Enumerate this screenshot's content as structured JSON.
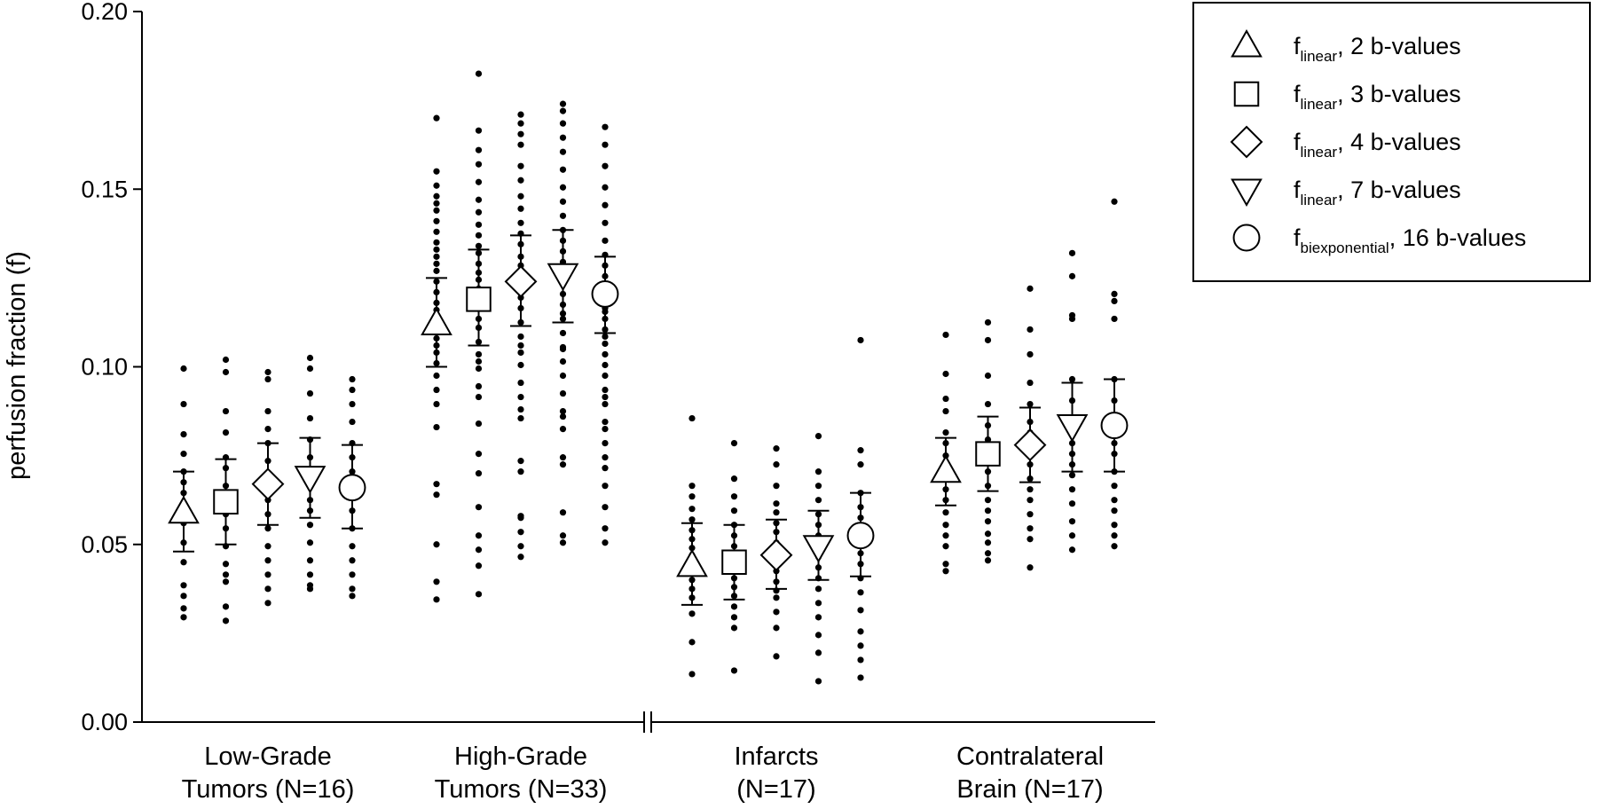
{
  "chart_data": {
    "type": "scatter",
    "ylabel": "perfusion fraction (f)",
    "ylim": [
      0,
      0.2
    ],
    "yticks": [
      "0.00",
      "0.05",
      "0.10",
      "0.15",
      "0.20"
    ],
    "axis_break_between": [
      "High-Grade Tumors (N=33)",
      "Infarcts (N=17)"
    ],
    "categories": [
      {
        "line1": "Low-Grade",
        "line2": "Tumors (N=16)"
      },
      {
        "line1": "High-Grade",
        "line2": "Tumors (N=33)"
      },
      {
        "line1": "Infarcts",
        "line2": "(N=17)"
      },
      {
        "line1": "Contralateral",
        "line2": "Brain (N=17)"
      }
    ],
    "legend": {
      "placement": "top-right",
      "entries": [
        {
          "marker": "triangle-up",
          "main": "f",
          "sub": "linear",
          "rest": ", 2 b-values"
        },
        {
          "marker": "square",
          "main": "f",
          "sub": "linear",
          "rest": ", 3 b-values"
        },
        {
          "marker": "diamond",
          "main": "f",
          "sub": "linear",
          "rest": ", 4 b-values"
        },
        {
          "marker": "triangle-down",
          "main": "f",
          "sub": "linear",
          "rest": ", 7 b-values"
        },
        {
          "marker": "circle",
          "main": "f",
          "sub": "biexponential",
          "rest": ", 16 b-values"
        }
      ]
    },
    "series": [
      {
        "name": "f_linear, 2 b-values",
        "marker": "triangle-up",
        "mean": [
          0.059,
          0.112,
          0.044,
          0.0705
        ],
        "lower": [
          0.048,
          0.1,
          0.033,
          0.061
        ],
        "upper": [
          0.0705,
          0.125,
          0.056,
          0.08
        ],
        "points": [
          [
            0.0995,
            0.0895,
            0.081,
            0.0755,
            0.0705,
            0.0675,
            0.0645,
            0.0615,
            0.059,
            0.056,
            0.0505,
            0.045,
            0.0385,
            0.0355,
            0.032,
            0.0295
          ],
          [
            0.17,
            0.155,
            0.151,
            0.148,
            0.146,
            0.144,
            0.141,
            0.138,
            0.135,
            0.133,
            0.131,
            0.129,
            0.127,
            0.124,
            0.121,
            0.118,
            0.116,
            0.114,
            0.112,
            0.11,
            0.108,
            0.106,
            0.104,
            0.101,
            0.0975,
            0.0935,
            0.0895,
            0.083,
            0.067,
            0.064,
            0.05,
            0.0395,
            0.0345
          ],
          [
            0.0855,
            0.0665,
            0.0635,
            0.06,
            0.057,
            0.054,
            0.0515,
            0.049,
            0.047,
            0.045,
            0.0425,
            0.04,
            0.0375,
            0.035,
            0.0305,
            0.0225,
            0.0135
          ],
          [
            0.109,
            0.098,
            0.091,
            0.0875,
            0.0815,
            0.0785,
            0.075,
            0.072,
            0.069,
            0.0655,
            0.0625,
            0.059,
            0.0555,
            0.0525,
            0.0495,
            0.0445,
            0.0425
          ]
        ]
      },
      {
        "name": "f_linear, 3 b-values",
        "marker": "square",
        "mean": [
          0.062,
          0.119,
          0.045,
          0.0755
        ],
        "lower": [
          0.05,
          0.106,
          0.0345,
          0.065
        ],
        "upper": [
          0.074,
          0.133,
          0.0555,
          0.086
        ],
        "points": [
          [
            0.102,
            0.0985,
            0.0875,
            0.0815,
            0.0745,
            0.0715,
            0.0665,
            0.0635,
            0.0585,
            0.0545,
            0.0495,
            0.0445,
            0.0415,
            0.0395,
            0.0325,
            0.0285
          ],
          [
            0.1825,
            0.1665,
            0.161,
            0.157,
            0.152,
            0.147,
            0.1435,
            0.14,
            0.137,
            0.134,
            0.132,
            0.129,
            0.1265,
            0.1245,
            0.122,
            0.1185,
            0.1165,
            0.1135,
            0.111,
            0.107,
            0.1035,
            0.1015,
            0.0995,
            0.0945,
            0.0915,
            0.084,
            0.0755,
            0.07,
            0.0605,
            0.0525,
            0.0485,
            0.044,
            0.036
          ],
          [
            0.0785,
            0.0685,
            0.0635,
            0.0595,
            0.0555,
            0.0525,
            0.0495,
            0.0465,
            0.045,
            0.043,
            0.0405,
            0.038,
            0.0355,
            0.0325,
            0.0295,
            0.0265,
            0.0145
          ],
          [
            0.1125,
            0.1075,
            0.0975,
            0.0895,
            0.0835,
            0.0795,
            0.0765,
            0.0735,
            0.0705,
            0.0665,
            0.0625,
            0.0595,
            0.0565,
            0.053,
            0.0505,
            0.0475,
            0.0455
          ]
        ]
      },
      {
        "name": "f_linear, 4 b-values",
        "marker": "diamond",
        "mean": [
          0.067,
          0.124,
          0.047,
          0.078
        ],
        "lower": [
          0.0555,
          0.1115,
          0.0375,
          0.0675
        ],
        "upper": [
          0.0785,
          0.137,
          0.057,
          0.0885
        ],
        "points": [
          [
            0.0985,
            0.0965,
            0.0875,
            0.0825,
            0.0785,
            0.0735,
            0.0695,
            0.0655,
            0.0625,
            0.0585,
            0.0545,
            0.0495,
            0.0455,
            0.0415,
            0.0375,
            0.0335
          ],
          [
            0.171,
            0.1685,
            0.1655,
            0.1625,
            0.1565,
            0.1525,
            0.148,
            0.1445,
            0.1405,
            0.1375,
            0.1345,
            0.131,
            0.1285,
            0.1255,
            0.1225,
            0.1195,
            0.1165,
            0.1125,
            0.1085,
            0.106,
            0.104,
            0.1005,
            0.0955,
            0.0915,
            0.0855,
            0.0735,
            0.0705,
            0.0575,
            0.0535,
            0.0495,
            0.0465,
            0.058,
            0.088
          ],
          [
            0.077,
            0.0725,
            0.0665,
            0.0615,
            0.059,
            0.056,
            0.0535,
            0.0505,
            0.048,
            0.045,
            0.0425,
            0.0395,
            0.037,
            0.035,
            0.031,
            0.0265,
            0.0185
          ],
          [
            0.122,
            0.1105,
            0.1035,
            0.0955,
            0.0895,
            0.0845,
            0.0815,
            0.0785,
            0.0755,
            0.0725,
            0.0685,
            0.0655,
            0.0625,
            0.0585,
            0.0545,
            0.0515,
            0.0435
          ]
        ]
      },
      {
        "name": "f_linear, 7 b-values",
        "marker": "triangle-down",
        "mean": [
          0.069,
          0.126,
          0.0495,
          0.0835
        ],
        "lower": [
          0.0575,
          0.1125,
          0.04,
          0.0705
        ],
        "upper": [
          0.08,
          0.1385,
          0.0595,
          0.0955
        ],
        "points": [
          [
            0.1025,
            0.0995,
            0.0925,
            0.0855,
            0.0795,
            0.0745,
            0.0705,
            0.0665,
            0.0625,
            0.0595,
            0.0555,
            0.0505,
            0.0455,
            0.0415,
            0.0385,
            0.0375
          ],
          [
            0.174,
            0.172,
            0.1685,
            0.1645,
            0.1605,
            0.1555,
            0.1505,
            0.1465,
            0.1425,
            0.1385,
            0.1355,
            0.1325,
            0.1295,
            0.1265,
            0.1235,
            0.1205,
            0.1175,
            0.1135,
            0.1095,
            0.1055,
            0.1015,
            0.0975,
            0.0925,
            0.0875,
            0.0825,
            0.0745,
            0.0725,
            0.0525,
            0.0505,
            0.059,
            0.086,
            0.105,
            0.115
          ],
          [
            0.0805,
            0.0705,
            0.0665,
            0.0625,
            0.0585,
            0.0555,
            0.0525,
            0.0495,
            0.0465,
            0.0435,
            0.0405,
            0.0375,
            0.0335,
            0.0295,
            0.0245,
            0.0195,
            0.0115
          ],
          [
            0.132,
            0.1255,
            0.1145,
            0.1135,
            0.0965,
            0.0905,
            0.0855,
            0.0815,
            0.0785,
            0.0755,
            0.0725,
            0.0695,
            0.0655,
            0.0615,
            0.0565,
            0.0525,
            0.0485
          ]
        ]
      },
      {
        "name": "f_biexponential, 16 b-values",
        "marker": "circle",
        "mean": [
          0.066,
          0.1205,
          0.0525,
          0.0835
        ],
        "lower": [
          0.0545,
          0.1095,
          0.041,
          0.0705
        ],
        "upper": [
          0.078,
          0.131,
          0.0645,
          0.0965
        ],
        "points": [
          [
            0.0965,
            0.0935,
            0.0895,
            0.0845,
            0.0785,
            0.0745,
            0.0705,
            0.0665,
            0.0635,
            0.0595,
            0.0545,
            0.0495,
            0.0455,
            0.0415,
            0.0375,
            0.0355
          ],
          [
            0.1675,
            0.1625,
            0.1565,
            0.1505,
            0.1455,
            0.1405,
            0.1355,
            0.1315,
            0.1285,
            0.1255,
            0.1225,
            0.1195,
            0.1165,
            0.1135,
            0.1105,
            0.1065,
            0.1035,
            0.1005,
            0.0975,
            0.0935,
            0.0895,
            0.0845,
            0.0785,
            0.0745,
            0.0715,
            0.0545,
            0.0505,
            0.0605,
            0.0665,
            0.0825,
            0.0915,
            0.1085,
            0.1155
          ],
          [
            0.1075,
            0.0765,
            0.0725,
            0.0645,
            0.0605,
            0.0575,
            0.0545,
            0.0505,
            0.0475,
            0.0445,
            0.0405,
            0.0365,
            0.0315,
            0.0255,
            0.0215,
            0.0175,
            0.0125
          ],
          [
            0.1465,
            0.1205,
            0.1185,
            0.1135,
            0.0965,
            0.0905,
            0.0845,
            0.0805,
            0.0785,
            0.0755,
            0.0705,
            0.0665,
            0.0625,
            0.0595,
            0.0555,
            0.0525,
            0.0495
          ]
        ]
      }
    ]
  }
}
